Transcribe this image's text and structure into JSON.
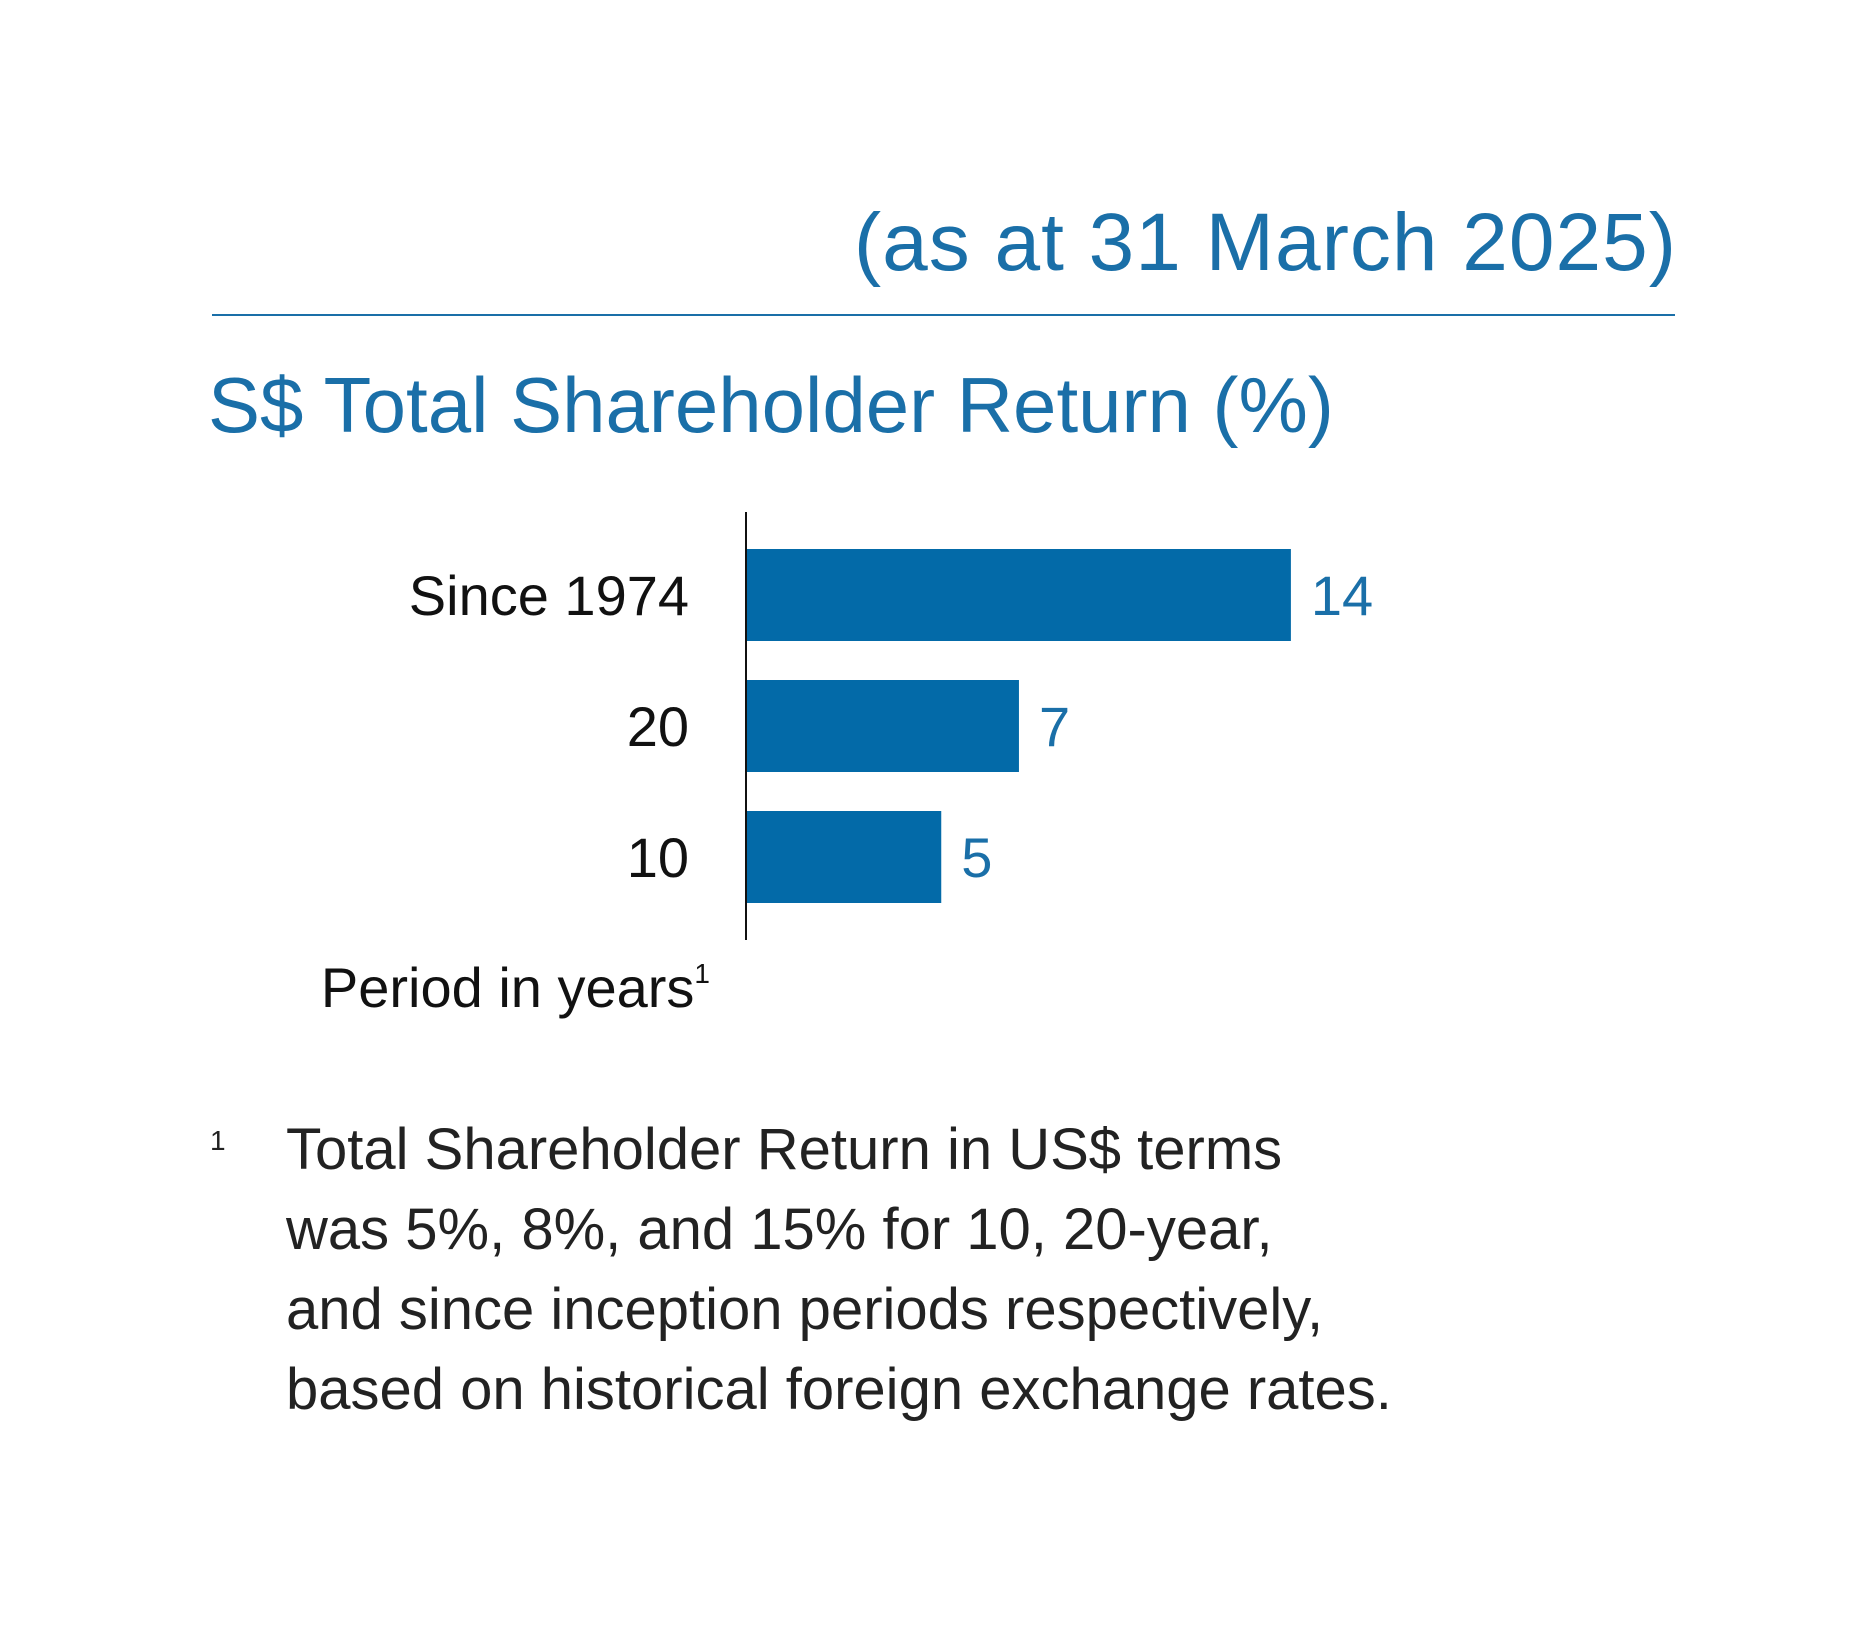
{
  "header": {
    "as_at": "(as at 31 March 2025)"
  },
  "colors": {
    "accent": "#1a6fa8",
    "bar": "#036aa8",
    "text": "#111111"
  },
  "chart_data": {
    "type": "bar",
    "orientation": "horizontal",
    "title": "S$ Total Shareholder Return (%)",
    "xlabel": "",
    "ylabel": "Period in years",
    "ylabel_footnote_marker": "1",
    "categories": [
      "Since 1974",
      "20",
      "10"
    ],
    "values": [
      14,
      7,
      5
    ],
    "data_labels": [
      "14",
      "7",
      "5"
    ],
    "xlim": [
      0,
      14
    ],
    "grid": false,
    "legend": "none"
  },
  "footnote": {
    "marker": "1",
    "lines": [
      "Total Shareholder Return in US$ terms",
      "was 5%, 8%, and 15% for 10, 20-year,",
      "and since inception periods respectively,",
      "based on historical foreign exchange rates."
    ]
  }
}
